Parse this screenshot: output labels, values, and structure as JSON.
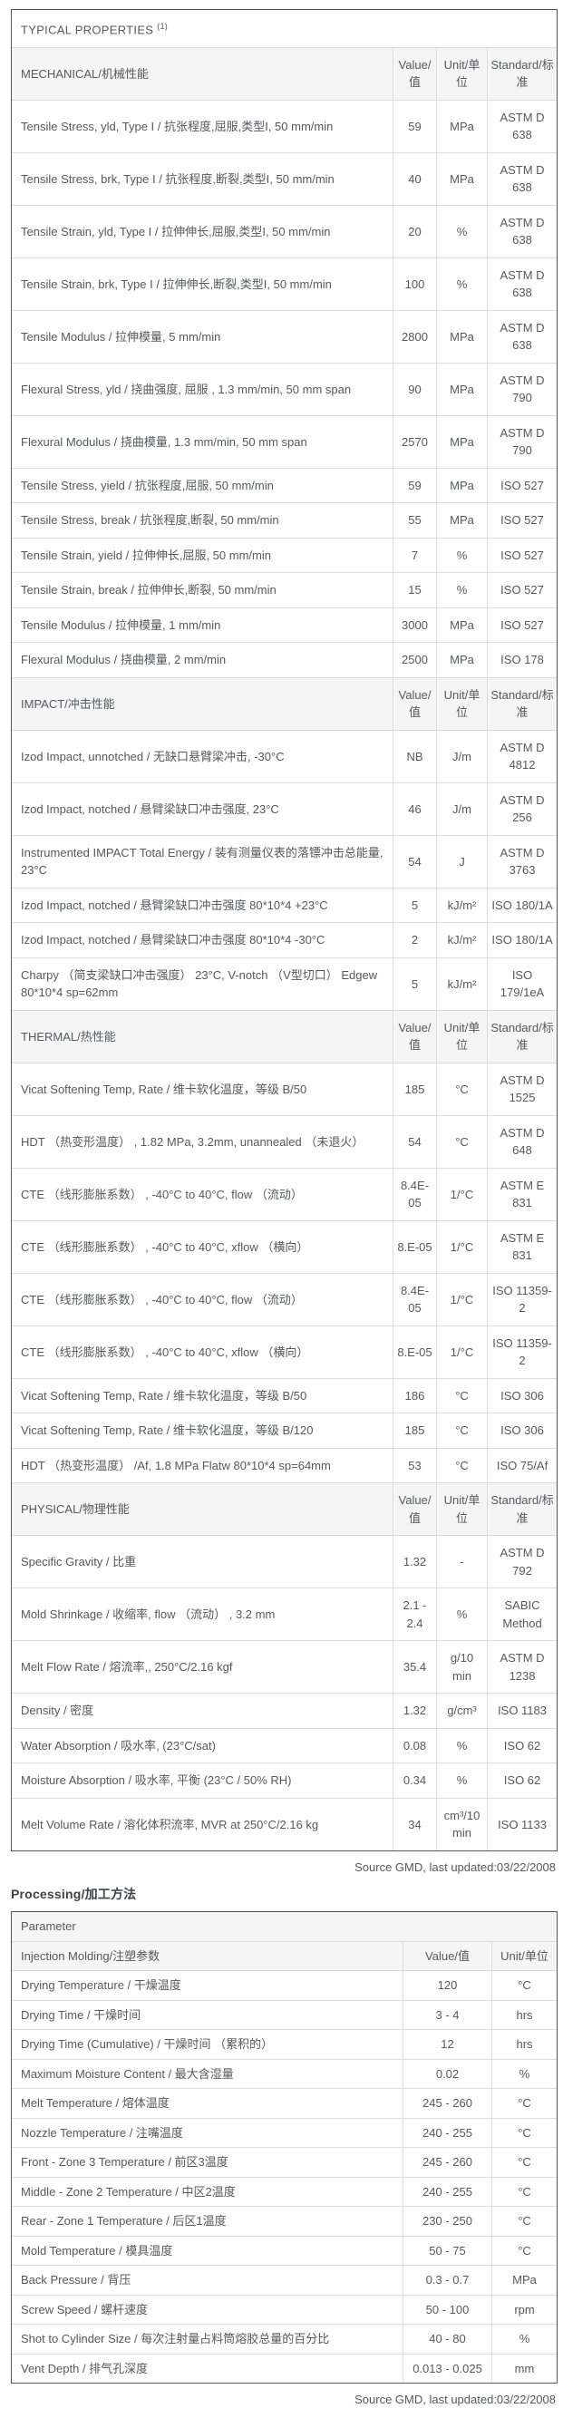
{
  "table1": {
    "title": "TYPICAL PROPERTIES",
    "title_sup": "(1)",
    "col_headers": {
      "value": "Value/值",
      "unit": "Unit/单位",
      "standard": "Standard/标准"
    },
    "sections": [
      {
        "label": "MECHANICAL/机械性能",
        "rows": [
          {
            "p": "Tensile Stress, yld, Type I / 抗张程度,屈服,类型I, 50 mm/min",
            "v": "59",
            "u": "MPa",
            "s": "ASTM D 638"
          },
          {
            "p": "Tensile Stress, brk, Type I / 抗张程度,断裂,类型I, 50 mm/min",
            "v": "40",
            "u": "MPa",
            "s": "ASTM D 638"
          },
          {
            "p": "Tensile Strain, yld, Type I / 拉伸伸长,屈服,类型I, 50 mm/min",
            "v": "20",
            "u": "%",
            "s": "ASTM D 638"
          },
          {
            "p": "Tensile Strain, brk, Type I / 拉伸伸长,断裂,类型I, 50 mm/min",
            "v": "100",
            "u": "%",
            "s": "ASTM D 638"
          },
          {
            "p": "Tensile Modulus / 拉伸模量, 5 mm/min",
            "v": "2800",
            "u": "MPa",
            "s": "ASTM D 638"
          },
          {
            "p": "Flexural Stress, yld / 挠曲强度, 屈服 , 1.3 mm/min, 50 mm span",
            "v": "90",
            "u": "MPa",
            "s": "ASTM D 790"
          },
          {
            "p": "Flexural Modulus / 挠曲模量, 1.3 mm/min, 50 mm span",
            "v": "2570",
            "u": "MPa",
            "s": "ASTM D 790"
          },
          {
            "p": "Tensile Stress, yield / 抗张程度,屈服, 50 mm/min",
            "v": "59",
            "u": "MPa",
            "s": "ISO 527"
          },
          {
            "p": "Tensile Stress, break / 抗张程度,断裂, 50 mm/min",
            "v": "55",
            "u": "MPa",
            "s": "ISO 527"
          },
          {
            "p": "Tensile Strain, yield / 拉伸伸长,屈服, 50 mm/min",
            "v": "7",
            "u": "%",
            "s": "ISO 527"
          },
          {
            "p": "Tensile Strain, break / 拉伸伸长,断裂, 50 mm/min",
            "v": "15",
            "u": "%",
            "s": "ISO 527"
          },
          {
            "p": "Tensile Modulus / 拉伸模量, 1 mm/min",
            "v": "3000",
            "u": "MPa",
            "s": "ISO 527"
          },
          {
            "p": "Flexural Modulus / 挠曲模量, 2 mm/min",
            "v": "2500",
            "u": "MPa",
            "s": "ISO 178"
          }
        ]
      },
      {
        "label": "IMPACT/冲击性能",
        "rows": [
          {
            "p": "Izod Impact, unnotched / 无缺口悬臂梁冲击, -30°C",
            "v": "NB",
            "u": "J/m",
            "s": "ASTM D 4812"
          },
          {
            "p": "Izod Impact, notched / 悬臂梁缺口冲击强度, 23°C",
            "v": "46",
            "u": "J/m",
            "s": "ASTM D 256"
          },
          {
            "p": "Instrumented IMPACT Total Energy / 装有测量仪表的落镖冲击总能量, 23°C",
            "v": "54",
            "u": "J",
            "s": "ASTM D 3763"
          },
          {
            "p": "Izod Impact, notched / 悬臂梁缺口冲击强度 80*10*4 +23°C",
            "v": "5",
            "u": "kJ/m²",
            "s": "ISO 180/1A"
          },
          {
            "p": "Izod Impact, notched / 悬臂梁缺口冲击强度 80*10*4 -30°C",
            "v": "2",
            "u": "kJ/m²",
            "s": "ISO 180/1A"
          },
          {
            "p": "Charpy （简支梁缺口冲击强度） 23°C, V-notch （V型切口） Edgew 80*10*4 sp=62mm",
            "v": "5",
            "u": "kJ/m²",
            "s": "ISO 179/1eA"
          }
        ]
      },
      {
        "label": "THERMAL/热性能",
        "rows": [
          {
            "p": "Vicat Softening Temp, Rate / 维卡软化温度，等级 B/50",
            "v": "185",
            "u": "°C",
            "s": "ASTM D 1525"
          },
          {
            "p": "HDT （热变形温度） , 1.82 MPa, 3.2mm, unannealed （未退火）",
            "v": "54",
            "u": "°C",
            "s": "ASTM D 648"
          },
          {
            "p": "CTE （线形膨胀系数） , -40°C to 40°C, flow （流动）",
            "v": "8.4E-05",
            "u": "1/°C",
            "s": "ASTM E 831"
          },
          {
            "p": "CTE （线形膨胀系数） , -40°C to 40°C, xflow （横向）",
            "v": "8.E-05",
            "u": "1/°C",
            "s": "ASTM E 831"
          },
          {
            "p": "CTE （线形膨胀系数） , -40°C to 40°C, flow （流动）",
            "v": "8.4E-05",
            "u": "1/°C",
            "s": "ISO 11359-2"
          },
          {
            "p": "CTE （线形膨胀系数） , -40°C to 40°C, xflow （横向）",
            "v": "8.E-05",
            "u": "1/°C",
            "s": "ISO 11359-2"
          },
          {
            "p": "Vicat Softening Temp, Rate / 维卡软化温度，等级 B/50",
            "v": "186",
            "u": "°C",
            "s": "ISO 306"
          },
          {
            "p": "Vicat Softening Temp, Rate / 维卡软化温度，等级 B/120",
            "v": "185",
            "u": "°C",
            "s": "ISO 306"
          },
          {
            "p": "HDT （热变形温度） /Af, 1.8 MPa Flatw 80*10*4 sp=64mm",
            "v": "53",
            "u": "°C",
            "s": "ISO 75/Af"
          }
        ]
      },
      {
        "label": "PHYSICAL/物理性能",
        "rows": [
          {
            "p": "Specific Gravity / 比重",
            "v": "1.32",
            "u": "-",
            "s": "ASTM D 792"
          },
          {
            "p": "Mold Shrinkage / 收缩率, flow （流动） , 3.2 mm",
            "v": "2.1 - 2.4",
            "u": "%",
            "s": "SABIC Method"
          },
          {
            "p": "Melt Flow Rate / 熔流率,, 250°C/2.16 kgf",
            "v": "35.4",
            "u": "g/10 min",
            "s": "ASTM D 1238"
          },
          {
            "p": "Density / 密度",
            "v": "1.32",
            "u": "g/cm³",
            "s": "ISO 1183"
          },
          {
            "p": "Water Absorption / 吸水率, (23°C/sat)",
            "v": "0.08",
            "u": "%",
            "s": "ISO 62"
          },
          {
            "p": "Moisture Absorption / 吸水率, 平衡 (23°C / 50% RH)",
            "v": "0.34",
            "u": "%",
            "s": "ISO 62"
          },
          {
            "p": "Melt Volume Rate / 溶化体积流率, MVR at 250°C/2.16 kg",
            "v": "34",
            "u": "cm³/10 min",
            "s": "ISO 1133"
          }
        ]
      }
    ],
    "source": "Source GMD, last updated:03/22/2008"
  },
  "processing": {
    "title": "Processing/加工方法",
    "param_header": "Parameter",
    "group_header": "Injection Molding/注塑参数",
    "col_headers": {
      "value": "Value/值",
      "unit": "Unit/单位"
    },
    "rows": [
      {
        "p": "Drying Temperature / 干燥温度",
        "v": "120",
        "u": "°C"
      },
      {
        "p": "Drying Time / 干燥时间",
        "v": "3 - 4",
        "u": "hrs"
      },
      {
        "p": "Drying Time (Cumulative) / 干燥时间 （累积的）",
        "v": "12",
        "u": "hrs"
      },
      {
        "p": "Maximum Moisture Content / 最大含湿量",
        "v": "0.02",
        "u": "%"
      },
      {
        "p": "Melt Temperature / 熔体温度",
        "v": "245 - 260",
        "u": "°C"
      },
      {
        "p": "Nozzle Temperature / 注嘴温度",
        "v": "240 - 255",
        "u": "°C"
      },
      {
        "p": "Front - Zone 3 Temperature / 前区3温度",
        "v": "245 - 260",
        "u": "°C"
      },
      {
        "p": "Middle - Zone 2 Temperature / 中区2温度",
        "v": "240 - 255",
        "u": "°C"
      },
      {
        "p": "Rear - Zone 1 Temperature / 后区1温度",
        "v": "230 - 250",
        "u": "°C"
      },
      {
        "p": "Mold Temperature / 模具温度",
        "v": "50 - 75",
        "u": "°C"
      },
      {
        "p": "Back Pressure / 背压",
        "v": "0.3 - 0.7",
        "u": "MPa"
      },
      {
        "p": "Screw Speed / 螺杆速度",
        "v": "50 - 100",
        "u": "rpm"
      },
      {
        "p": "Shot to Cylinder Size / 每次注射量占料筒熔胶总量的百分比",
        "v": "40 - 80",
        "u": "%"
      },
      {
        "p": "Vent Depth / 排气孔深度",
        "v": "0.013 - 0.025",
        "u": "mm"
      }
    ],
    "source": "Source GMD, last updated:03/22/2008"
  }
}
